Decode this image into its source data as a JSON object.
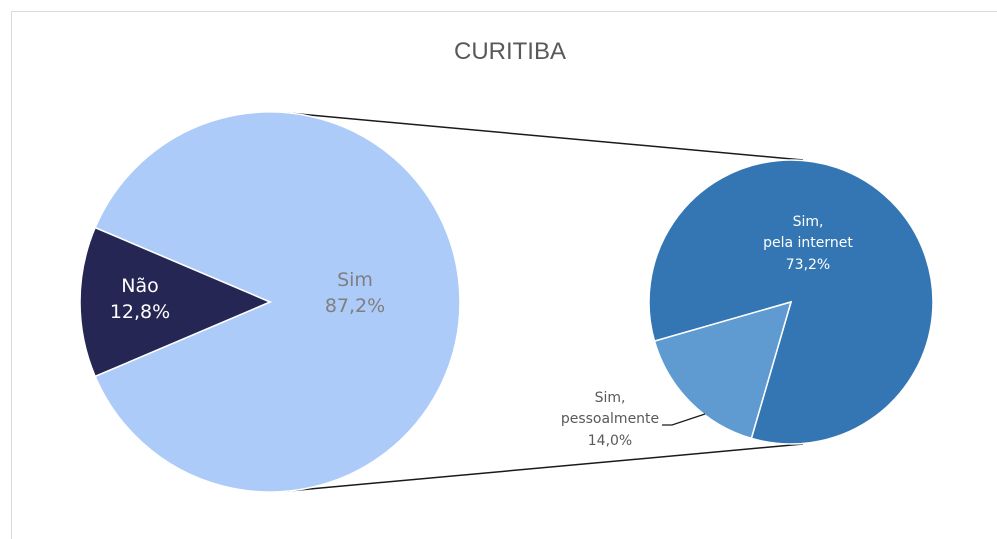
{
  "chart_data": {
    "type": "pie",
    "title": "CURITIBA",
    "main_pie": {
      "slices": [
        {
          "label": "Não",
          "value_label": "12,8%",
          "value": 12.8,
          "color": "#262654"
        },
        {
          "label": "Sim",
          "value_label": "87,2%",
          "value": 87.2,
          "color": "#adcbf8"
        }
      ]
    },
    "secondary_pie": {
      "slices": [
        {
          "label_line1": "Sim,",
          "label_line2": "pela internet",
          "value_label": "73,2%",
          "value": 73.2,
          "color": "#3476b3"
        },
        {
          "label_line1": "Sim,",
          "label_line2": "pessoalmente",
          "value_label": "14,0%",
          "value": 14.0,
          "color": "#5f9bd0"
        }
      ]
    },
    "connector_color": "#1a1a1a"
  }
}
